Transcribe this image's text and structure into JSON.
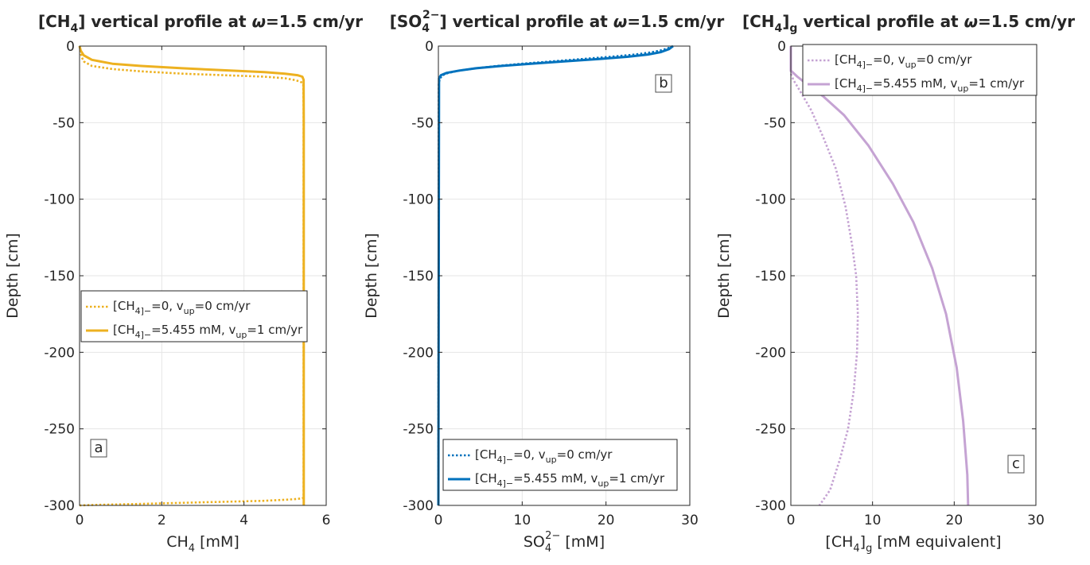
{
  "colors": {
    "ch4": "#EDB120",
    "so4": "#0072BD",
    "ch4g": "#C5A3D3",
    "grid": "#e6e6e6",
    "axis": "#262626"
  },
  "chart_data": [
    {
      "type": "line",
      "title": {
        "main": "[CH",
        "sub": "4",
        "rest": "] vertical profile at ",
        "omega": "ω",
        "tail": "=1.5 cm/yr"
      },
      "xlabel": {
        "main": "CH",
        "sub": "4",
        "rest": " [mM]"
      },
      "ylabel": "Depth [cm]",
      "xlim": [
        0,
        6
      ],
      "ylim": [
        -300,
        0
      ],
      "xticks": [
        "0",
        "2",
        "4",
        "6"
      ],
      "yticks": [
        "0",
        "-50",
        "-100",
        "-150",
        "-200",
        "-250",
        "-300"
      ],
      "grid": true,
      "panel_label": "a",
      "legend_position": "middle-right",
      "legend": [
        {
          "pre": "[CH",
          "sub1": "4",
          "sub2": "]",
          "subx": "−",
          "mid": "=0, v",
          "sub3": "up",
          "post": "=0 cm/yr",
          "style": "dotted"
        },
        {
          "pre": "[CH",
          "sub1": "4",
          "sub2": "]",
          "subx": "−",
          "mid": "=5.455 mM, v",
          "sub3": "up",
          "post": "=1 cm/yr",
          "style": "solid"
        }
      ],
      "series": [
        {
          "style": "dotted",
          "x": [
            0,
            0.02,
            0.05,
            0.1,
            0.3,
            0.8,
            1.5,
            2.5,
            3.5,
            4.5,
            5.0,
            5.2,
            5.35,
            5.42,
            5.44,
            5.45,
            5.45,
            5.45,
            5.45,
            5.4,
            5.2,
            4.5,
            3.0,
            1.5,
            0.5,
            0.1,
            0
          ],
          "y": [
            0,
            -3,
            -7,
            -10,
            -13,
            -15,
            -16.5,
            -18,
            -19,
            -20,
            -21,
            -22,
            -23,
            -24,
            -25,
            -40,
            -100,
            -200,
            -295,
            -295.5,
            -296,
            -297,
            -298,
            -299,
            -299.6,
            -299.9,
            -300
          ]
        },
        {
          "style": "solid",
          "x": [
            0,
            0.03,
            0.1,
            0.3,
            0.8,
            1.5,
            2.5,
            3.5,
            4.5,
            5.0,
            5.3,
            5.42,
            5.45,
            5.455,
            5.455
          ],
          "y": [
            0,
            -3,
            -6,
            -9,
            -11.5,
            -13,
            -14.5,
            -15.8,
            -17,
            -18,
            -19,
            -20,
            -22,
            -50,
            -300
          ]
        }
      ]
    },
    {
      "type": "line",
      "title": {
        "main": "[SO",
        "sub": "4",
        "sup": "2−",
        "rest": "] vertical profile at ",
        "omega": "ω",
        "tail": "=1.5 cm/yr"
      },
      "xlabel": {
        "main": "SO",
        "sub": "4",
        "sup": "2−",
        "rest": " [mM]"
      },
      "ylabel": "Depth [cm]",
      "xlim": [
        0,
        30
      ],
      "ylim": [
        -300,
        0
      ],
      "xticks": [
        "0",
        "10",
        "20",
        "30"
      ],
      "yticks": [
        "0",
        "-50",
        "-100",
        "-150",
        "-200",
        "-250",
        "-300"
      ],
      "grid": true,
      "panel_label": "b",
      "legend_position": "bottom-right",
      "legend": [
        {
          "pre": "[CH",
          "sub1": "4",
          "sub2": "]",
          "subx": "−",
          "mid": "=0, v",
          "sub3": "up",
          "post": "=0 cm/yr",
          "style": "dotted"
        },
        {
          "pre": "[CH",
          "sub1": "4",
          "sub2": "]",
          "subx": "−",
          "mid": "=5.455 mM, v",
          "sub3": "up",
          "post": "=1 cm/yr",
          "style": "solid"
        }
      ],
      "series": [
        {
          "style": "dotted",
          "x": [
            28,
            27.6,
            26.8,
            25.5,
            23.5,
            20.5,
            17,
            13.5,
            10,
            7,
            4.5,
            2.5,
            1.2,
            0.5,
            0.2,
            0.05,
            0
          ],
          "y": [
            0,
            -1,
            -2.5,
            -4,
            -5.5,
            -7,
            -8.5,
            -10,
            -11.5,
            -13,
            -14.5,
            -16,
            -17.5,
            -19,
            -21,
            -24,
            -300
          ]
        },
        {
          "style": "solid",
          "x": [
            28,
            27.5,
            26.5,
            25,
            22.5,
            19,
            15,
            11,
            7.5,
            4.5,
            2.5,
            1,
            0.3,
            0.08,
            0
          ],
          "y": [
            0,
            -2,
            -4,
            -5.5,
            -7,
            -8.5,
            -10,
            -11.5,
            -13,
            -14.5,
            -16,
            -17.5,
            -19,
            -21,
            -300
          ]
        }
      ]
    },
    {
      "type": "line",
      "title": {
        "main": "[CH",
        "sub": "4",
        "sub2": "]",
        "subx": "g",
        "rest": " vertical profile at ",
        "omega": "ω",
        "tail": "=1.5 cm/yr"
      },
      "xlabel": {
        "main": "[CH",
        "sub": "4",
        "sub2": "]",
        "subx": "g",
        "rest": " [mM equivalent]"
      },
      "ylabel": "Depth [cm]",
      "xlim": [
        0,
        30
      ],
      "ylim": [
        -300,
        0
      ],
      "xticks": [
        "0",
        "10",
        "20",
        "30"
      ],
      "yticks": [
        "0",
        "-50",
        "-100",
        "-150",
        "-200",
        "-250",
        "-300"
      ],
      "grid": true,
      "panel_label": "c",
      "legend_position": "top-right",
      "legend": [
        {
          "pre": "[CH",
          "sub1": "4",
          "sub2": "]",
          "subx": "−",
          "mid": "=0, v",
          "sub3": "up",
          "post": "=0 cm/yr",
          "style": "dotted"
        },
        {
          "pre": "[CH",
          "sub1": "4",
          "sub2": "]",
          "subx": "−",
          "mid": "=5.455 mM, v",
          "sub3": "up",
          "post": "=1 cm/yr",
          "style": "solid"
        }
      ],
      "series": [
        {
          "style": "dotted",
          "x": [
            0,
            0,
            0.3,
            1.2,
            2.5,
            4.0,
            5.5,
            6.7,
            7.5,
            8.0,
            8.2,
            8.1,
            7.7,
            7.0,
            6.0,
            4.8,
            3.5
          ],
          "y": [
            0,
            -18,
            -22,
            -30,
            -42,
            -60,
            -80,
            -105,
            -130,
            -150,
            -175,
            -200,
            -225,
            -250,
            -270,
            -290,
            -300
          ]
        },
        {
          "style": "solid",
          "x": [
            0,
            0,
            0.8,
            2.0,
            4.0,
            6.5,
            9.5,
            12.5,
            15.0,
            17.3,
            19.0,
            20.3,
            21.1,
            21.6,
            21.7
          ],
          "y": [
            0,
            -16,
            -20,
            -25,
            -33,
            -45,
            -65,
            -90,
            -115,
            -145,
            -175,
            -210,
            -245,
            -280,
            -300
          ]
        }
      ]
    }
  ]
}
